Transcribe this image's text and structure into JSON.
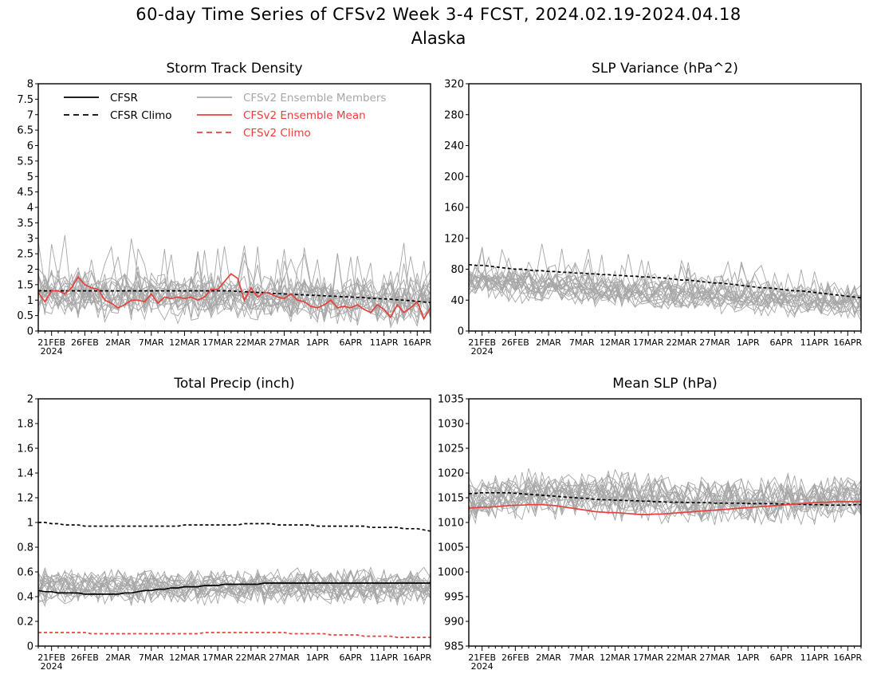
{
  "header": {
    "title": "60-day Time Series of CFSv2 Week 3-4 FCST, 2024.02.19-2024.04.18",
    "region": "Alaska"
  },
  "colors": {
    "cfsr": "#000000",
    "ensemble": "#a6a6a6",
    "mean": "#e8403c"
  },
  "legend": [
    {
      "label": "CFSR",
      "style": "solid",
      "color": "#000000"
    },
    {
      "label": "CFSR Climo",
      "style": "dashed",
      "color": "#000000"
    },
    {
      "label": "CFSv2 Ensemble Members",
      "style": "solid",
      "color": "#a6a6a6"
    },
    {
      "label": "CFSv2 Ensemble Mean",
      "style": "solid",
      "color": "#e8403c"
    },
    {
      "label": "CFSv2 Climo",
      "style": "dashed",
      "color": "#e8403c"
    }
  ],
  "chart_data": [
    {
      "type": "line",
      "title": "Storm Track Density",
      "ylim": [
        0,
        8
      ],
      "yticks": [
        "0",
        "0.5",
        "1",
        "1.5",
        "2",
        "2.5",
        "3",
        "3.5",
        "4",
        "4.5",
        "5",
        "5.5",
        "6",
        "6.5",
        "7",
        "7.5",
        "8"
      ],
      "xtick_labels": [
        "21FEB",
        "26FEB",
        "2MAR",
        "7MAR",
        "12MAR",
        "17MAR",
        "22MAR",
        "27MAR",
        "1APR",
        "6APR",
        "11APR",
        "16APR"
      ],
      "xtick_year": "2024",
      "legend_position": "top-left",
      "n_members": 20,
      "series": [
        {
          "name": "CFSR Climo",
          "values": [
            1.3,
            1.3,
            1.3,
            1.3,
            1.3,
            1.3,
            1.3,
            1.3,
            1.3,
            1.3,
            1.3,
            1.3,
            1.3,
            1.3,
            1.3,
            1.3,
            1.3,
            1.3,
            1.3,
            1.3,
            1.3,
            1.3,
            1.3,
            1.3,
            1.3,
            1.3,
            1.3,
            1.3,
            1.3,
            1.3,
            1.28,
            1.27,
            1.26,
            1.25,
            1.24,
            1.22,
            1.21,
            1.2,
            1.19,
            1.18,
            1.17,
            1.16,
            1.15,
            1.14,
            1.13,
            1.12,
            1.11,
            1.1,
            1.09,
            1.08,
            1.06,
            1.05,
            1.04,
            1.03,
            1.01,
            1.0,
            0.98,
            0.96,
            0.94,
            0.92
          ]
        },
        {
          "name": "CFSv2 Ensemble Mean",
          "values": [
            1.25,
            0.95,
            1.3,
            1.3,
            1.2,
            1.4,
            1.75,
            1.5,
            1.4,
            1.35,
            1.0,
            0.9,
            0.75,
            0.85,
            1.0,
            1.0,
            0.95,
            1.2,
            0.9,
            1.1,
            1.05,
            1.1,
            1.05,
            1.1,
            1.0,
            1.1,
            1.35,
            1.35,
            1.6,
            1.85,
            1.7,
            1.0,
            1.4,
            1.1,
            1.25,
            1.2,
            1.1,
            1.05,
            1.2,
            1.0,
            0.95,
            0.8,
            0.75,
            0.85,
            1.0,
            0.75,
            0.8,
            0.75,
            0.85,
            0.7,
            0.6,
            0.85,
            0.7,
            0.45,
            0.85,
            0.6,
            0.75,
            0.95,
            0.4,
            0.75
          ]
        }
      ]
    },
    {
      "type": "line",
      "title": "SLP Variance (hPa^2)",
      "ylim": [
        0,
        320
      ],
      "yticks": [
        "0",
        "40",
        "80",
        "120",
        "160",
        "200",
        "240",
        "280",
        "320"
      ],
      "xtick_labels": [
        "21FEB",
        "26FEB",
        "2MAR",
        "7MAR",
        "12MAR",
        "17MAR",
        "22MAR",
        "27MAR",
        "1APR",
        "6APR",
        "11APR",
        "16APR"
      ],
      "xtick_year": "2024",
      "n_members": 20,
      "series": [
        {
          "name": "CFSR Climo",
          "values": [
            86,
            85,
            85,
            84,
            83,
            82,
            81,
            80,
            80,
            79,
            78,
            78,
            77,
            77,
            76,
            76,
            75,
            75,
            74,
            74,
            73,
            73,
            72,
            72,
            71,
            71,
            70,
            70,
            69,
            69,
            68,
            67,
            66,
            66,
            65,
            64,
            63,
            62,
            62,
            61,
            60,
            59,
            58,
            57,
            56,
            56,
            55,
            54,
            53,
            52,
            52,
            51,
            50,
            49,
            48,
            47,
            46,
            45,
            44,
            43
          ]
        }
      ]
    },
    {
      "type": "line",
      "title": "Total Precip (inch)",
      "ylim": [
        0,
        2
      ],
      "yticks": [
        "0",
        "0.2",
        "0.4",
        "0.6",
        "0.8",
        "1",
        "1.2",
        "1.4",
        "1.6",
        "1.8",
        "2"
      ],
      "xtick_labels": [
        "21FEB",
        "26FEB",
        "2MAR",
        "7MAR",
        "12MAR",
        "17MAR",
        "22MAR",
        "27MAR",
        "1APR",
        "6APR",
        "11APR",
        "16APR"
      ],
      "xtick_year": "2024",
      "n_members": 20,
      "series": [
        {
          "name": "CFSR Climo",
          "values": [
            1.0,
            1.0,
            0.99,
            0.99,
            0.98,
            0.98,
            0.98,
            0.97,
            0.97,
            0.97,
            0.97,
            0.97,
            0.97,
            0.97,
            0.97,
            0.97,
            0.97,
            0.97,
            0.97,
            0.97,
            0.97,
            0.97,
            0.98,
            0.98,
            0.98,
            0.98,
            0.98,
            0.98,
            0.98,
            0.98,
            0.98,
            0.99,
            0.99,
            0.99,
            0.99,
            0.99,
            0.98,
            0.98,
            0.98,
            0.98,
            0.98,
            0.98,
            0.97,
            0.97,
            0.97,
            0.97,
            0.97,
            0.97,
            0.97,
            0.97,
            0.96,
            0.96,
            0.96,
            0.96,
            0.96,
            0.95,
            0.95,
            0.95,
            0.94,
            0.93
          ]
        },
        {
          "name": "CFSR",
          "values": [
            0.45,
            0.44,
            0.44,
            0.43,
            0.43,
            0.43,
            0.43,
            0.42,
            0.42,
            0.42,
            0.42,
            0.42,
            0.42,
            0.43,
            0.43,
            0.44,
            0.45,
            0.45,
            0.46,
            0.46,
            0.47,
            0.47,
            0.48,
            0.48,
            0.48,
            0.49,
            0.49,
            0.49,
            0.5,
            0.5,
            0.5,
            0.5,
            0.5,
            0.5,
            0.51,
            0.51,
            0.51,
            0.51,
            0.51,
            0.51,
            0.51,
            0.51,
            0.51,
            0.51,
            0.51,
            0.51,
            0.51,
            0.51,
            0.51,
            0.51,
            0.51,
            0.51,
            0.51,
            0.51,
            0.51,
            0.51,
            0.51,
            0.51,
            0.51,
            0.51
          ]
        },
        {
          "name": "CFSv2 Climo",
          "values": [
            0.11,
            0.11,
            0.11,
            0.11,
            0.11,
            0.11,
            0.11,
            0.11,
            0.1,
            0.1,
            0.1,
            0.1,
            0.1,
            0.1,
            0.1,
            0.1,
            0.1,
            0.1,
            0.1,
            0.1,
            0.1,
            0.1,
            0.1,
            0.1,
            0.1,
            0.11,
            0.11,
            0.11,
            0.11,
            0.11,
            0.11,
            0.11,
            0.11,
            0.11,
            0.11,
            0.11,
            0.11,
            0.11,
            0.1,
            0.1,
            0.1,
            0.1,
            0.1,
            0.1,
            0.09,
            0.09,
            0.09,
            0.09,
            0.09,
            0.08,
            0.08,
            0.08,
            0.08,
            0.08,
            0.07,
            0.07,
            0.07,
            0.07,
            0.07,
            0.07
          ]
        }
      ]
    },
    {
      "type": "line",
      "title": "Mean SLP (hPa)",
      "ylim": [
        985,
        1035
      ],
      "yticks": [
        "985",
        "990",
        "995",
        "1000",
        "1005",
        "1010",
        "1015",
        "1020",
        "1025",
        "1030",
        "1035"
      ],
      "xtick_labels": [
        "21FEB",
        "26FEB",
        "2MAR",
        "7MAR",
        "12MAR",
        "17MAR",
        "22MAR",
        "27MAR",
        "1APR",
        "6APR",
        "11APR",
        "16APR"
      ],
      "xtick_year": "2024",
      "n_members": 20,
      "series": [
        {
          "name": "CFSR Climo",
          "values": [
            1015.8,
            1015.9,
            1016,
            1016,
            1016,
            1016,
            1016,
            1015.9,
            1015.8,
            1015.7,
            1015.6,
            1015.5,
            1015.4,
            1015.3,
            1015.2,
            1015.1,
            1015,
            1014.9,
            1014.8,
            1014.7,
            1014.6,
            1014.6,
            1014.5,
            1014.5,
            1014.4,
            1014.4,
            1014.3,
            1014.3,
            1014.2,
            1014.2,
            1014.1,
            1014.1,
            1014.1,
            1014,
            1014,
            1014,
            1014,
            1013.9,
            1013.9,
            1013.9,
            1013.9,
            1013.9,
            1013.8,
            1013.8,
            1013.8,
            1013.8,
            1013.8,
            1013.7,
            1013.7,
            1013.7,
            1013.7,
            1013.6,
            1013.6,
            1013.6,
            1013.5,
            1013.5,
            1013.5,
            1013.5,
            1013.6,
            1013.6
          ]
        },
        {
          "name": "CFSv2 Ensemble Mean",
          "values": [
            1012.9,
            1013,
            1013.1,
            1013.1,
            1013.2,
            1013.3,
            1013.4,
            1013.5,
            1013.5,
            1013.6,
            1013.6,
            1013.6,
            1013.5,
            1013.4,
            1013.2,
            1013,
            1012.8,
            1012.6,
            1012.4,
            1012.2,
            1012.1,
            1012,
            1012,
            1011.9,
            1011.8,
            1011.7,
            1011.6,
            1011.6,
            1011.7,
            1011.7,
            1011.8,
            1011.9,
            1012,
            1012.1,
            1012.2,
            1012.3,
            1012.4,
            1012.5,
            1012.6,
            1012.7,
            1012.8,
            1012.9,
            1013,
            1013.1,
            1013.2,
            1013.3,
            1013.4,
            1013.5,
            1013.6,
            1013.7,
            1013.8,
            1013.9,
            1014,
            1014.1,
            1014.1,
            1014.2,
            1014.2,
            1014.2,
            1014.2,
            1014.2
          ]
        }
      ]
    }
  ]
}
